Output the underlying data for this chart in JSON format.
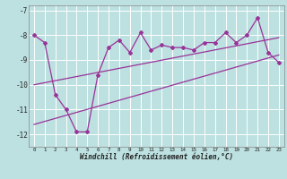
{
  "xlabel": "Windchill (Refroidissement éolien,°C)",
  "background_color": "#bde0e0",
  "grid_color": "#ffffff",
  "line_color": "#993399",
  "xlim": [
    -0.5,
    23.5
  ],
  "ylim": [
    -12.5,
    -6.8
  ],
  "yticks": [
    -12,
    -11,
    -10,
    -9,
    -8,
    -7
  ],
  "xticks": [
    0,
    1,
    2,
    3,
    4,
    5,
    6,
    7,
    8,
    9,
    10,
    11,
    12,
    13,
    14,
    15,
    16,
    17,
    18,
    19,
    20,
    21,
    22,
    23
  ],
  "series1_x": [
    0,
    1,
    2,
    3,
    4,
    5,
    6,
    7,
    8,
    9,
    10,
    11,
    12,
    13,
    14,
    15,
    16,
    17,
    18,
    19,
    20,
    21,
    22,
    23
  ],
  "series1_y": [
    -8.0,
    -8.3,
    -10.4,
    -11.0,
    -11.9,
    -11.9,
    -9.6,
    -8.5,
    -8.2,
    -8.7,
    -7.9,
    -8.6,
    -8.4,
    -8.5,
    -8.5,
    -8.6,
    -8.3,
    -8.3,
    -7.9,
    -8.3,
    -8.0,
    -7.3,
    -8.7,
    -9.1
  ],
  "trend1_x": [
    0,
    23
  ],
  "trend1_y": [
    -10.0,
    -8.1
  ],
  "trend2_x": [
    0,
    23
  ],
  "trend2_y": [
    -11.6,
    -8.8
  ]
}
